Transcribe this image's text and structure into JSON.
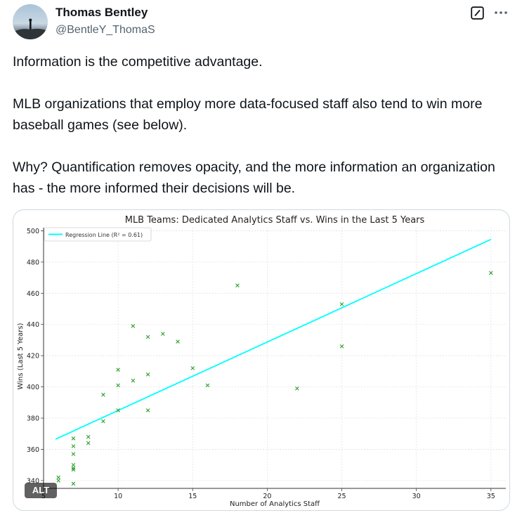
{
  "user": {
    "name": "Thomas Bentley",
    "handle": "@BentleY_ThomaS"
  },
  "tweet": {
    "line1": "Information is the competitive advantage.",
    "line2": "MLB organizations that employ more data-focused staff also tend to win more baseball games (see below).",
    "line3": "Why? Quantification removes opacity, and the more information an organization has - the more informed their decisions will be."
  },
  "media": {
    "alt_badge": "ALT"
  },
  "icons": {
    "grok": "grok-icon",
    "more": "more-icon"
  },
  "colors": {
    "regression": "#00ffff",
    "points": "#2ca02c",
    "text": "#0f1419",
    "muted": "#536471"
  },
  "chart_data": {
    "type": "scatter",
    "title": "MLB Teams: Dedicated Analytics Staff vs. Wins in the Last 5 Years",
    "xlabel": "Number of Analytics Staff",
    "ylabel": "Wins (Last 5 Years)",
    "xlim": [
      5,
      36
    ],
    "ylim": [
      335,
      502
    ],
    "xticks": [
      5,
      10,
      15,
      20,
      25,
      30,
      35
    ],
    "xtick_labels": [
      "5",
      "10",
      "15",
      "20",
      "25",
      "30",
      "35"
    ],
    "yticks": [
      340,
      360,
      380,
      400,
      420,
      440,
      460,
      480,
      500
    ],
    "ytick_labels": [
      "340",
      "360",
      "380",
      "400",
      "420",
      "440",
      "460",
      "480",
      "500"
    ],
    "grid": true,
    "legend_position": "top-left",
    "legend": "Regression Line (R² = 0.61)",
    "points": [
      {
        "x": 6,
        "y": 342
      },
      {
        "x": 6,
        "y": 340
      },
      {
        "x": 7,
        "y": 367
      },
      {
        "x": 7,
        "y": 362
      },
      {
        "x": 7,
        "y": 357
      },
      {
        "x": 7,
        "y": 350
      },
      {
        "x": 7,
        "y": 348
      },
      {
        "x": 7,
        "y": 347
      },
      {
        "x": 7,
        "y": 338
      },
      {
        "x": 8,
        "y": 368
      },
      {
        "x": 8,
        "y": 364
      },
      {
        "x": 9,
        "y": 395
      },
      {
        "x": 9,
        "y": 378
      },
      {
        "x": 10,
        "y": 411
      },
      {
        "x": 10,
        "y": 401
      },
      {
        "x": 10,
        "y": 385
      },
      {
        "x": 11,
        "y": 439
      },
      {
        "x": 11,
        "y": 404
      },
      {
        "x": 12,
        "y": 432
      },
      {
        "x": 12,
        "y": 408
      },
      {
        "x": 12,
        "y": 385
      },
      {
        "x": 13,
        "y": 434
      },
      {
        "x": 14,
        "y": 429
      },
      {
        "x": 15,
        "y": 412
      },
      {
        "x": 16,
        "y": 401
      },
      {
        "x": 18,
        "y": 465
      },
      {
        "x": 22,
        "y": 399
      },
      {
        "x": 25,
        "y": 453
      },
      {
        "x": 25,
        "y": 426
      },
      {
        "x": 35,
        "y": 473
      }
    ],
    "regression": {
      "x": [
        5.8,
        35
      ],
      "y": [
        366.5,
        494.5
      ]
    }
  }
}
